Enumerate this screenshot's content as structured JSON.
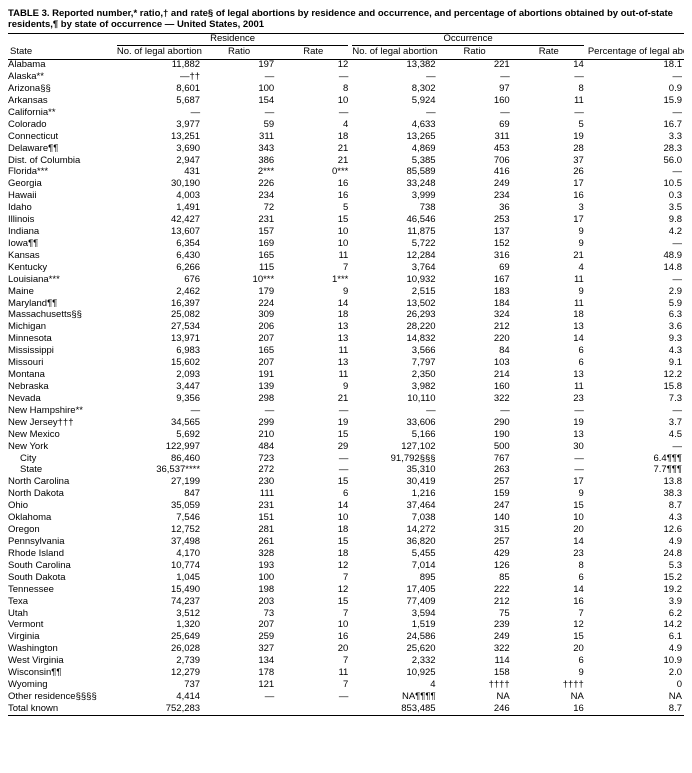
{
  "title": "TABLE 3. Reported number,* ratio,† and rate§ of legal abortions by residence and occurrence, and percentage of abortions obtained by out-of-state residents,¶ by state of occurrence — United States, 2001",
  "header": {
    "state": "State",
    "residence": "Residence",
    "occurrence": "Occurrence",
    "no_legal": "No. of legal abortions",
    "ratio": "Ratio",
    "rate": "Rate",
    "pct_out": "Percentage of legal abortions obtained by out-of-state residents"
  },
  "rows": [
    {
      "s": "Alabama",
      "rn": "11,882",
      "rr": "197",
      "rt": "12",
      "on": "13,382",
      "or": "221",
      "ot": "14",
      "p": "18.1"
    },
    {
      "s": "Alaska**",
      "rn": "—††",
      "rr": "—",
      "rt": "—",
      "on": "—",
      "or": "—",
      "ot": "—",
      "p": "—"
    },
    {
      "s": "Arizona§§",
      "rn": "8,601",
      "rr": "100",
      "rt": "8",
      "on": "8,302",
      "or": "97",
      "ot": "8",
      "p": "0.9"
    },
    {
      "s": "Arkansas",
      "rn": "5,687",
      "rr": "154",
      "rt": "10",
      "on": "5,924",
      "or": "160",
      "ot": "11",
      "p": "15.9"
    },
    {
      "s": "California**",
      "rn": "—",
      "rr": "—",
      "rt": "—",
      "on": "—",
      "or": "—",
      "ot": "—",
      "p": "—"
    },
    {
      "s": "Colorado",
      "rn": "3,977",
      "rr": "59",
      "rt": "4",
      "on": "4,633",
      "or": "69",
      "ot": "5",
      "p": "16.7"
    },
    {
      "s": "Connecticut",
      "rn": "13,251",
      "rr": "311",
      "rt": "18",
      "on": "13,265",
      "or": "311",
      "ot": "19",
      "p": "3.3"
    },
    {
      "s": "Delaware¶¶",
      "rn": "3,690",
      "rr": "343",
      "rt": "21",
      "on": "4,869",
      "or": "453",
      "ot": "28",
      "p": "28.3"
    },
    {
      "s": "Dist. of Columbia",
      "rn": "2,947",
      "rr": "386",
      "rt": "21",
      "on": "5,385",
      "or": "706",
      "ot": "37",
      "p": "56.0"
    },
    {
      "s": "Florida***",
      "rn": "431",
      "rr": "2***",
      "rt": "0***",
      "on": "85,589",
      "or": "416",
      "ot": "26",
      "p": "—"
    },
    {
      "s": "Georgia",
      "rn": "30,190",
      "rr": "226",
      "rt": "16",
      "on": "33,248",
      "or": "249",
      "ot": "17",
      "p": "10.5"
    },
    {
      "s": "Hawaii",
      "rn": "4,003",
      "rr": "234",
      "rt": "16",
      "on": "3,999",
      "or": "234",
      "ot": "16",
      "p": "0.3"
    },
    {
      "s": "Idaho",
      "rn": "1,491",
      "rr": "72",
      "rt": "5",
      "on": "738",
      "or": "36",
      "ot": "3",
      "p": "3.5"
    },
    {
      "s": "Illinois",
      "rn": "42,427",
      "rr": "231",
      "rt": "15",
      "on": "46,546",
      "or": "253",
      "ot": "17",
      "p": "9.8"
    },
    {
      "s": "Indiana",
      "rn": "13,607",
      "rr": "157",
      "rt": "10",
      "on": "11,875",
      "or": "137",
      "ot": "9",
      "p": "4.2"
    },
    {
      "s": "Iowa¶¶",
      "rn": "6,354",
      "rr": "169",
      "rt": "10",
      "on": "5,722",
      "or": "152",
      "ot": "9",
      "p": "—"
    },
    {
      "s": "Kansas",
      "rn": "6,430",
      "rr": "165",
      "rt": "11",
      "on": "12,284",
      "or": "316",
      "ot": "21",
      "p": "48.9"
    },
    {
      "s": "Kentucky",
      "rn": "6,266",
      "rr": "115",
      "rt": "7",
      "on": "3,764",
      "or": "69",
      "ot": "4",
      "p": "14.8"
    },
    {
      "s": "Louisiana***",
      "rn": "676",
      "rr": "10***",
      "rt": "1***",
      "on": "10,932",
      "or": "167",
      "ot": "11",
      "p": "—"
    },
    {
      "s": "Maine",
      "rn": "2,462",
      "rr": "179",
      "rt": "9",
      "on": "2,515",
      "or": "183",
      "ot": "9",
      "p": "2.9"
    },
    {
      "s": "Maryland¶¶",
      "rn": "16,397",
      "rr": "224",
      "rt": "14",
      "on": "13,502",
      "or": "184",
      "ot": "11",
      "p": "5.9"
    },
    {
      "s": "Massachusetts§§",
      "rn": "25,082",
      "rr": "309",
      "rt": "18",
      "on": "26,293",
      "or": "324",
      "ot": "18",
      "p": "6.3"
    },
    {
      "s": "Michigan",
      "rn": "27,534",
      "rr": "206",
      "rt": "13",
      "on": "28,220",
      "or": "212",
      "ot": "13",
      "p": "3.6"
    },
    {
      "s": "Minnesota",
      "rn": "13,971",
      "rr": "207",
      "rt": "13",
      "on": "14,832",
      "or": "220",
      "ot": "14",
      "p": "9.3"
    },
    {
      "s": "Mississippi",
      "rn": "6,983",
      "rr": "165",
      "rt": "11",
      "on": "3,566",
      "or": "84",
      "ot": "6",
      "p": "4.3"
    },
    {
      "s": "Missouri",
      "rn": "15,602",
      "rr": "207",
      "rt": "13",
      "on": "7,797",
      "or": "103",
      "ot": "6",
      "p": "9.1"
    },
    {
      "s": "Montana",
      "rn": "2,093",
      "rr": "191",
      "rt": "11",
      "on": "2,350",
      "or": "214",
      "ot": "13",
      "p": "12.2"
    },
    {
      "s": "Nebraska",
      "rn": "3,447",
      "rr": "139",
      "rt": "9",
      "on": "3,982",
      "or": "160",
      "ot": "11",
      "p": "15.8"
    },
    {
      "s": "Nevada",
      "rn": "9,356",
      "rr": "298",
      "rt": "21",
      "on": "10,110",
      "or": "322",
      "ot": "23",
      "p": "7.3"
    },
    {
      "s": "New Hampshire**",
      "rn": "—",
      "rr": "—",
      "rt": "—",
      "on": "—",
      "or": "—",
      "ot": "—",
      "p": "—"
    },
    {
      "s": "New Jersey†††",
      "rn": "34,565",
      "rr": "299",
      "rt": "19",
      "on": "33,606",
      "or": "290",
      "ot": "19",
      "p": "3.7"
    },
    {
      "s": "New Mexico",
      "rn": "5,692",
      "rr": "210",
      "rt": "15",
      "on": "5,166",
      "or": "190",
      "ot": "13",
      "p": "4.5"
    },
    {
      "s": "New York",
      "rn": "122,997",
      "rr": "484",
      "rt": "29",
      "on": "127,102",
      "or": "500",
      "ot": "30",
      "p": "—"
    },
    {
      "s": "City",
      "indent": true,
      "rn": "86,460",
      "rr": "723",
      "rt": "—",
      "on": "91,792§§§",
      "or": "767",
      "ot": "—",
      "p": "6.4¶¶¶"
    },
    {
      "s": "State",
      "indent": true,
      "rn": "36,537****",
      "rr": "272",
      "rt": "—",
      "on": "35,310",
      "or": "263",
      "ot": "—",
      "p": "7.7¶¶¶"
    },
    {
      "s": "North Carolina",
      "rn": "27,199",
      "rr": "230",
      "rt": "15",
      "on": "30,419",
      "or": "257",
      "ot": "17",
      "p": "13.8"
    },
    {
      "s": "North Dakota",
      "rn": "847",
      "rr": "111",
      "rt": "6",
      "on": "1,216",
      "or": "159",
      "ot": "9",
      "p": "38.3"
    },
    {
      "s": "Ohio",
      "rn": "35,059",
      "rr": "231",
      "rt": "14",
      "on": "37,464",
      "or": "247",
      "ot": "15",
      "p": "8.7"
    },
    {
      "s": "Oklahoma",
      "rn": "7,546",
      "rr": "151",
      "rt": "10",
      "on": "7,038",
      "or": "140",
      "ot": "10",
      "p": "4.3"
    },
    {
      "s": "Oregon",
      "rn": "12,752",
      "rr": "281",
      "rt": "18",
      "on": "14,272",
      "or": "315",
      "ot": "20",
      "p": "12.6"
    },
    {
      "s": "Pennsylvania",
      "rn": "37,498",
      "rr": "261",
      "rt": "15",
      "on": "36,820",
      "or": "257",
      "ot": "14",
      "p": "4.9"
    },
    {
      "s": "Rhode Island",
      "rn": "4,170",
      "rr": "328",
      "rt": "18",
      "on": "5,455",
      "or": "429",
      "ot": "23",
      "p": "24.8"
    },
    {
      "s": "South Carolina",
      "rn": "10,774",
      "rr": "193",
      "rt": "12",
      "on": "7,014",
      "or": "126",
      "ot": "8",
      "p": "5.3"
    },
    {
      "s": "South Dakota",
      "rn": "1,045",
      "rr": "100",
      "rt": "7",
      "on": "895",
      "or": "85",
      "ot": "6",
      "p": "15.2"
    },
    {
      "s": "Tennessee",
      "rn": "15,490",
      "rr": "198",
      "rt": "12",
      "on": "17,405",
      "or": "222",
      "ot": "14",
      "p": "19.2"
    },
    {
      "s": "Texa",
      "rn": "74,237",
      "rr": "203",
      "rt": "15",
      "on": "77,409",
      "or": "212",
      "ot": "16",
      "p": "3.9"
    },
    {
      "s": "Utah",
      "rn": "3,512",
      "rr": "73",
      "rt": "7",
      "on": "3,594",
      "or": "75",
      "ot": "7",
      "p": "6.2"
    },
    {
      "s": "Vermont",
      "rn": "1,320",
      "rr": "207",
      "rt": "10",
      "on": "1,519",
      "or": "239",
      "ot": "12",
      "p": "14.2"
    },
    {
      "s": "Virginia",
      "rn": "25,649",
      "rr": "259",
      "rt": "16",
      "on": "24,586",
      "or": "249",
      "ot": "15",
      "p": "6.1"
    },
    {
      "s": "Washington",
      "rn": "26,028",
      "rr": "327",
      "rt": "20",
      "on": "25,620",
      "or": "322",
      "ot": "20",
      "p": "4.9"
    },
    {
      "s": "West Virginia",
      "rn": "2,739",
      "rr": "134",
      "rt": "7",
      "on": "2,332",
      "or": "114",
      "ot": "6",
      "p": "10.9"
    },
    {
      "s": "Wisconsin¶¶",
      "rn": "12,279",
      "rr": "178",
      "rt": "11",
      "on": "10,925",
      "or": "158",
      "ot": "9",
      "p": "2.0"
    },
    {
      "s": "Wyoming",
      "rn": "737",
      "rr": "121",
      "rt": "7",
      "on": "4",
      "or": "††††",
      "ot": "††††",
      "p": "0"
    },
    {
      "s": "Other residence§§§§",
      "rn": "4,414",
      "rr": "—",
      "rt": "—",
      "on": "NA¶¶¶¶",
      "or": "NA",
      "ot": "NA",
      "p": "NA"
    },
    {
      "s": "Total known",
      "rn": "752,283",
      "rr": "",
      "rt": "",
      "on": "853,485",
      "or": "246",
      "ot": "16",
      "p": "8.7"
    }
  ]
}
